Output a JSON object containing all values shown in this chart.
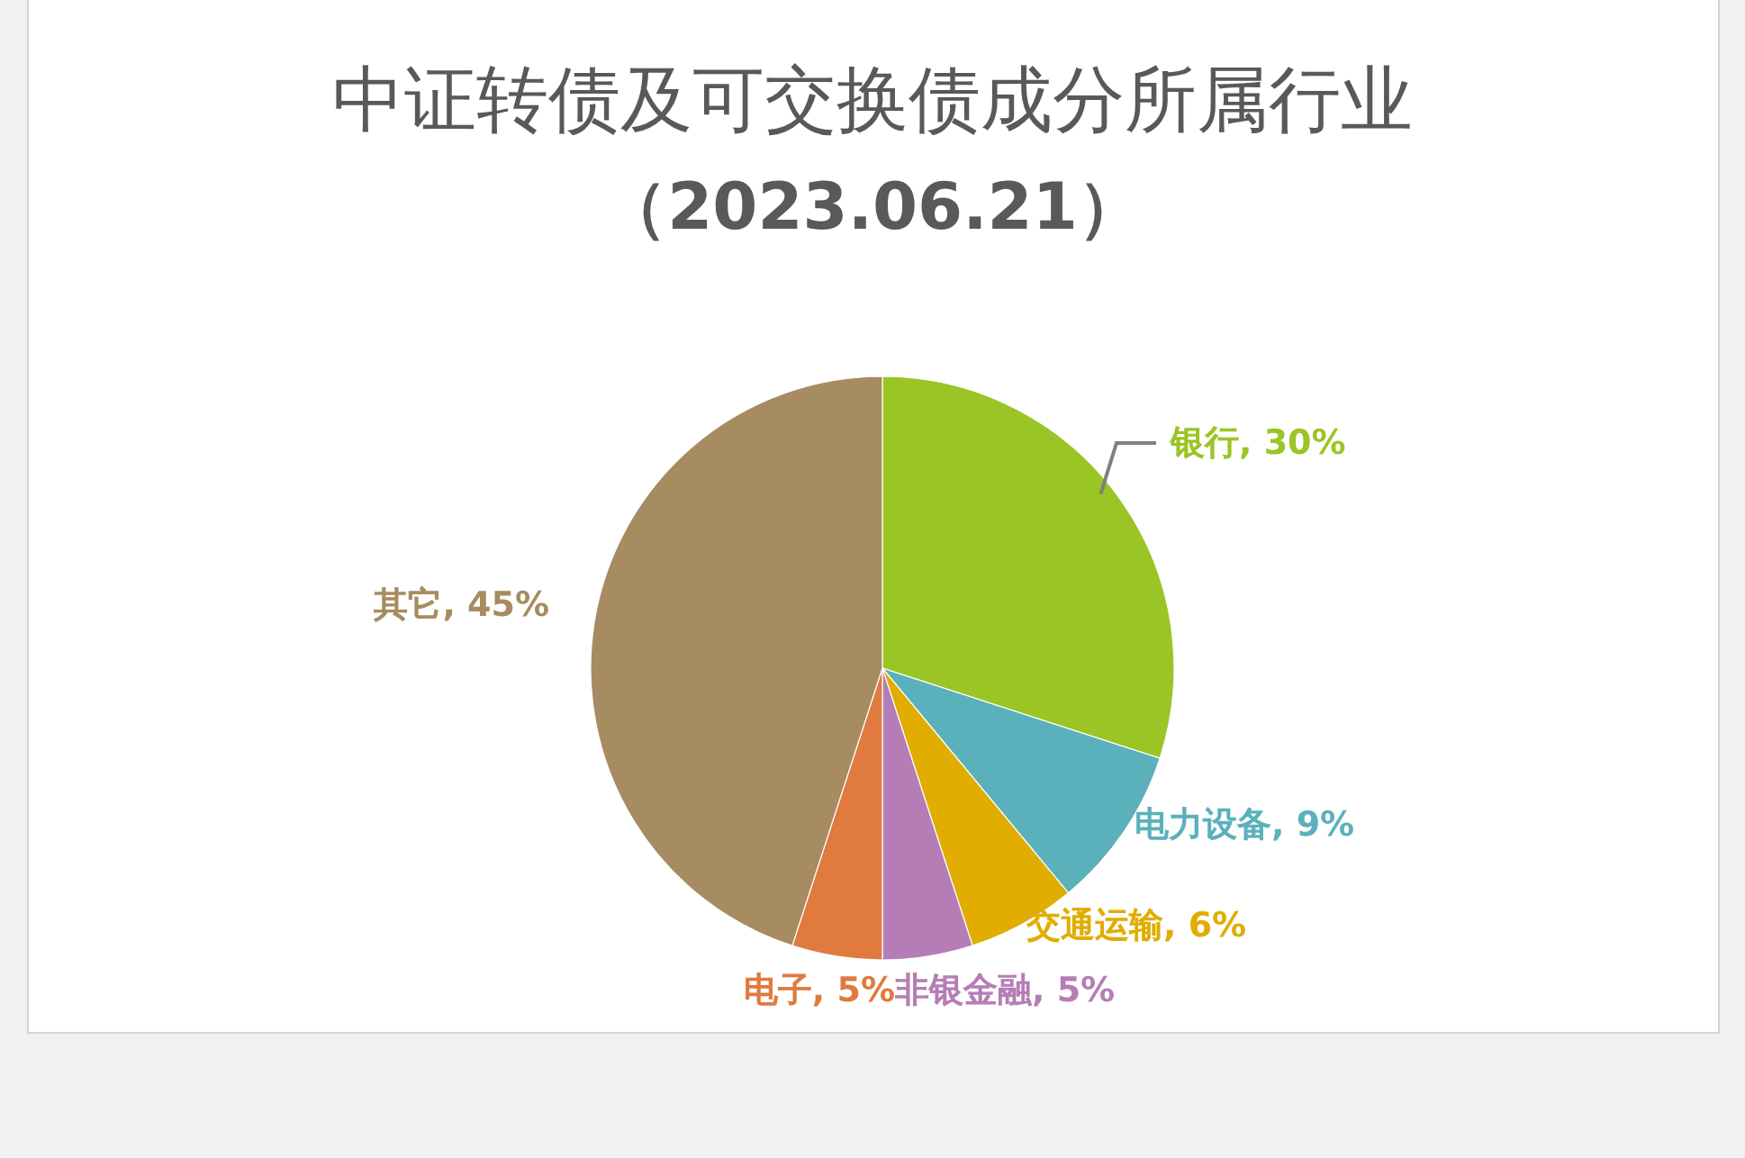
{
  "chart_data": {
    "type": "pie",
    "title": "中证转债及可交换债成分所属行业",
    "subtitle": "（2023.06.21）",
    "categories": [
      "银行",
      "电力设备",
      "交通运输",
      "非银金融",
      "电子",
      "其它"
    ],
    "values": [
      30,
      9,
      6,
      5,
      5,
      45
    ],
    "colors": [
      "#9ac524",
      "#5ab1bb",
      "#e0ad00",
      "#b57db5",
      "#e07a3f",
      "#a78b61"
    ],
    "value_labels": [
      "30%",
      "9%",
      "6%",
      "5%",
      "5%",
      "45%"
    ]
  }
}
